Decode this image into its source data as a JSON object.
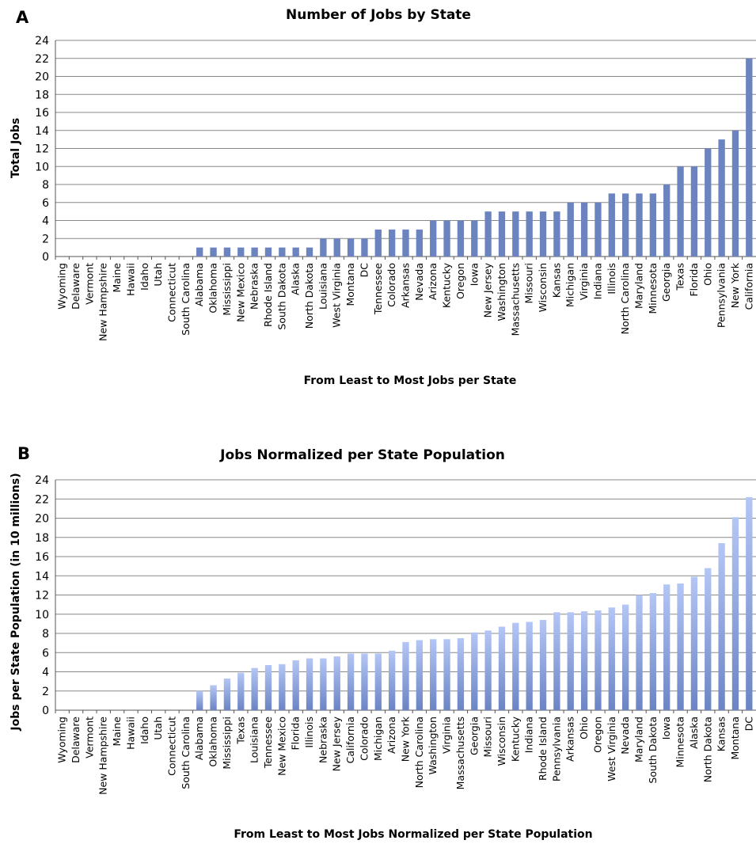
{
  "chart_data": [
    {
      "type": "bar",
      "panel_label": "A",
      "title": "Number of Jobs by State",
      "xlabel": "From Least to Most Jobs per State",
      "ylabel": "Total Jobs",
      "ylim": [
        0,
        24
      ],
      "yticks": [
        "0",
        "2",
        "4",
        "6",
        "8",
        "10",
        "12",
        "14",
        "16",
        "18",
        "20",
        "22",
        "24"
      ],
      "grid": true,
      "bar_color": "#6b84bf",
      "categories": [
        "Wyoming",
        "Delaware",
        "Vermont",
        "New Hampshire",
        "Maine",
        "Hawaii",
        "Idaho",
        "Utah",
        "Connecticut",
        "South Carolina",
        "Alabama",
        "Oklahoma",
        "Mississippi",
        "New Mexico",
        "Nebraska",
        "Rhode Island",
        "South Dakota",
        "Alaska",
        "North Dakota",
        "Louisiana",
        "West Virginia",
        "Montana",
        "DC",
        "Tennessee",
        "Colorado",
        "Arkansas",
        "Nevada",
        "Arizona",
        "Kentucky",
        "Oregon",
        "Iowa",
        "New Jersey",
        "Washington",
        "Massachusetts",
        "Missouri",
        "Wisconsin",
        "Kansas",
        "Michigan",
        "Virginia",
        "Indiana",
        "Illinois",
        "North Carolina",
        "Maryland",
        "Minnesota",
        "Georgia",
        "Texas",
        "Florida",
        "Ohio",
        "Pennsylvania",
        "New York",
        "California"
      ],
      "values": [
        0,
        0,
        0,
        0,
        0,
        0,
        0,
        0,
        0,
        0,
        1,
        1,
        1,
        1,
        1,
        1,
        1,
        1,
        1,
        2,
        2,
        2,
        2,
        3,
        3,
        3,
        3,
        4,
        4,
        4,
        4,
        5,
        5,
        5,
        5,
        5,
        5,
        6,
        6,
        6,
        7,
        7,
        7,
        7,
        8,
        10,
        10,
        12,
        13,
        14,
        22
      ]
    },
    {
      "type": "bar",
      "panel_label": "B",
      "title": "Jobs Normalized per State Population",
      "xlabel": "From Least to Most Jobs Normalized per State Population",
      "ylabel": "Jobs per State Population (in 10 millions)",
      "ylim": [
        0,
        24
      ],
      "yticks": [
        "0",
        "2",
        "4",
        "6",
        "8",
        "10",
        "12",
        "14",
        "16",
        "18",
        "20",
        "22",
        "24"
      ],
      "grid": true,
      "bar_color_top": "#b4c6f5",
      "bar_color_bottom": "#6b84c4",
      "categories": [
        "Wyoming",
        "Delaware",
        "Vermont",
        "New Hampshire",
        "Maine",
        "Hawaii",
        "Idaho",
        "Utah",
        "Connecticut",
        "South Carolina",
        "Alabama",
        "Oklahoma",
        "Mississippi",
        "Texas",
        "Louisiana",
        "Tennessee",
        "New Mexico",
        "Florida",
        "Illinois",
        "Nebraska",
        "New Jersey",
        "California",
        "Colorado",
        "Michigan",
        "Arizona",
        "New York",
        "North Carolina",
        "Washington",
        "Virginia",
        "Massachusetts",
        "Georgia",
        "Missouri",
        "Wisconsin",
        "Kentucky",
        "Indiana",
        "Rhode Island",
        "Pennsylvania",
        "Arkansas",
        "Ohio",
        "Oregon",
        "West Virginia",
        "Nevada",
        "Maryland",
        "South Dakota",
        "Iowa",
        "Minnesota",
        "Alaska",
        "North Dakota",
        "Kansas",
        "Montana",
        "DC"
      ],
      "values": [
        0,
        0,
        0,
        0,
        0,
        0,
        0,
        0,
        0,
        0,
        2.0,
        2.6,
        3.3,
        3.9,
        4.4,
        4.7,
        4.8,
        5.2,
        5.4,
        5.4,
        5.6,
        5.9,
        5.9,
        5.9,
        6.2,
        7.1,
        7.3,
        7.4,
        7.4,
        7.5,
        8.1,
        8.3,
        8.7,
        9.1,
        9.2,
        9.4,
        10.2,
        10.2,
        10.3,
        10.4,
        10.7,
        11.0,
        12.0,
        12.2,
        13.1,
        13.2,
        13.9,
        14.8,
        17.4,
        20.1,
        22.2
      ]
    }
  ]
}
